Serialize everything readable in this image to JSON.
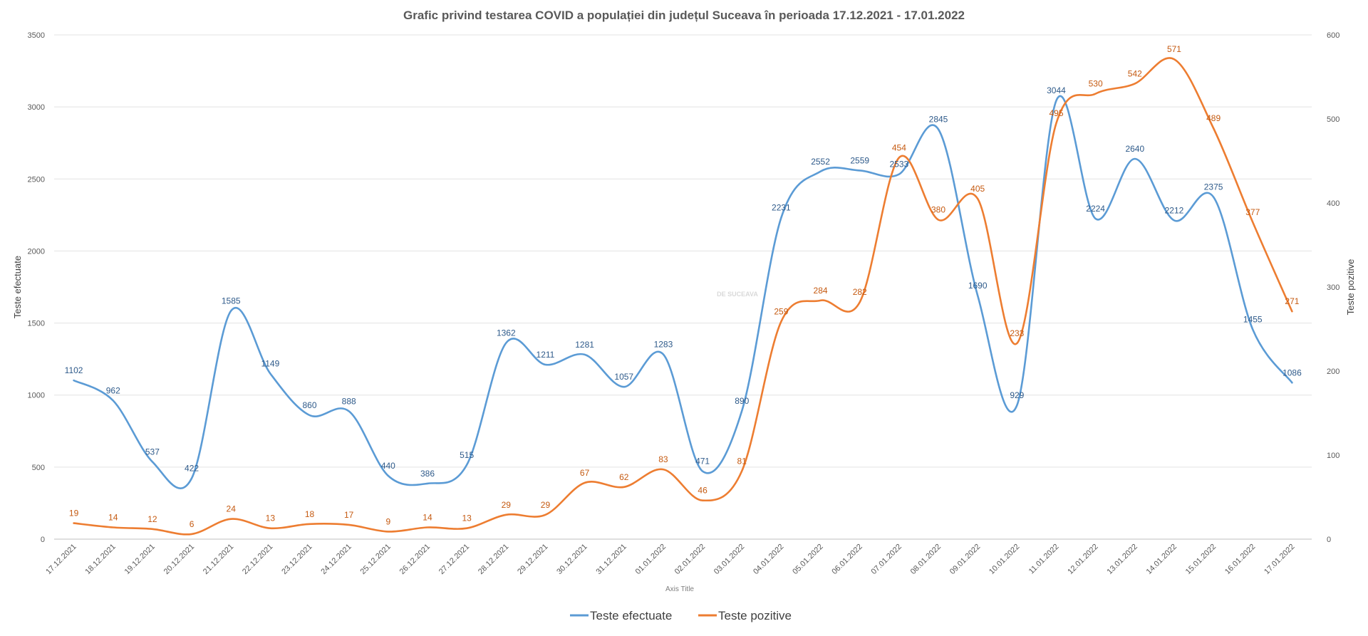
{
  "chart_data": {
    "type": "line",
    "title": "Grafic privind testarea COVID a populației din județul Suceava în perioada 17.12.2021 - 17.01.2022",
    "xlabel": "Axis Title",
    "ylabel": "Teste efectuate",
    "y2label": "Teste pozitive",
    "watermark": "DE SUCEAVA",
    "ylim": [
      0,
      3500
    ],
    "y2lim": [
      0,
      600
    ],
    "yticks": [
      0,
      500,
      1000,
      1500,
      2000,
      2500,
      3000,
      3500
    ],
    "y2ticks": [
      0,
      100,
      200,
      300,
      400,
      500,
      600
    ],
    "grid": true,
    "legend_position": "bottom",
    "categories": [
      "17.12.2021",
      "18.12.2021",
      "19.12.2021",
      "20.12.2021",
      "21.12.2021",
      "22.12.2021",
      "23.12.2021",
      "24.12.2021",
      "25.12.2021",
      "26.12.2021",
      "27.12.2021",
      "28.12.2021",
      "29.12.2021",
      "30.12.2021",
      "31.12.2021",
      "01.01.2022",
      "02.01.2022",
      "03.01.2022",
      "04.01.2022",
      "05.01.2022",
      "06.01.2022",
      "07.01.2022",
      "08.01.2022",
      "09.01.2022",
      "10.01.2022",
      "11.01.2022",
      "12.01.2022",
      "13.01.2022",
      "14.01.2022",
      "15.01.2022",
      "16.01.2022",
      "17.01.2022"
    ],
    "series": [
      {
        "name": "Teste efectuate",
        "axis": "left",
        "color": "#5b9bd5",
        "label_color": "#2e5a8a",
        "values": [
          1102,
          962,
          537,
          422,
          1585,
          1149,
          860,
          888,
          440,
          386,
          515,
          1362,
          1211,
          1281,
          1057,
          1283,
          471,
          890,
          2231,
          2552,
          2559,
          2533,
          2845,
          1690,
          929,
          3044,
          2224,
          2640,
          2212,
          2375,
          1455,
          1086
        ]
      },
      {
        "name": "Teste pozitive",
        "axis": "right",
        "color": "#ed7d31",
        "label_color": "#c55a11",
        "values": [
          19,
          14,
          12,
          6,
          24,
          13,
          18,
          17,
          9,
          14,
          13,
          29,
          29,
          67,
          62,
          83,
          46,
          81,
          259,
          284,
          282,
          454,
          380,
          405,
          233,
          495,
          530,
          542,
          571,
          489,
          377,
          271
        ]
      }
    ]
  }
}
